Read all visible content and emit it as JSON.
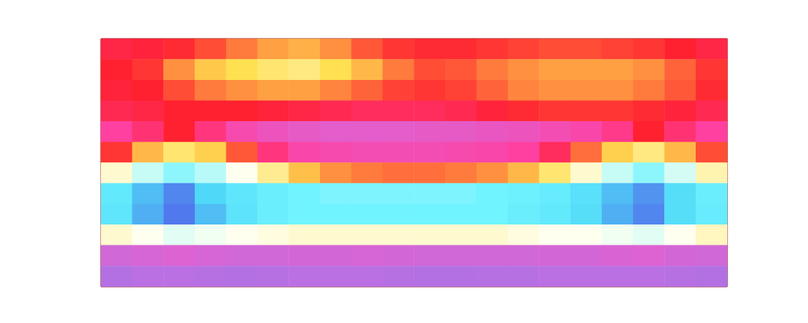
{
  "chart_data": {
    "type": "heatmap",
    "tick_labels": false,
    "color_range": [
      0,
      1
    ],
    "cells": [
      [
        0.38,
        0.39,
        0.41,
        0.44,
        0.48,
        0.52,
        0.54,
        0.5,
        0.45,
        0.42,
        0.41,
        0.41,
        0.42,
        0.43,
        0.44,
        0.44,
        0.43,
        0.42,
        0.4,
        0.38
      ],
      [
        0.4,
        0.42,
        0.5,
        0.57,
        0.6,
        0.62,
        0.63,
        0.6,
        0.55,
        0.48,
        0.44,
        0.45,
        0.48,
        0.5,
        0.52,
        0.52,
        0.52,
        0.5,
        0.46,
        0.42
      ],
      [
        0.39,
        0.4,
        0.44,
        0.48,
        0.5,
        0.52,
        0.52,
        0.49,
        0.46,
        0.43,
        0.42,
        0.43,
        0.46,
        0.49,
        0.5,
        0.5,
        0.5,
        0.48,
        0.45,
        0.41
      ],
      [
        0.37,
        0.38,
        0.4,
        0.4,
        0.4,
        0.39,
        0.38,
        0.37,
        0.36,
        0.36,
        0.36,
        0.37,
        0.39,
        0.41,
        0.42,
        0.42,
        0.42,
        0.41,
        0.39,
        0.37
      ],
      [
        0.3,
        0.34,
        0.4,
        0.33,
        0.27,
        0.24,
        0.22,
        0.21,
        0.21,
        0.21,
        0.22,
        0.22,
        0.23,
        0.24,
        0.26,
        0.28,
        0.32,
        0.4,
        0.34,
        0.3
      ],
      [
        0.42,
        0.55,
        0.62,
        0.58,
        0.45,
        0.33,
        0.28,
        0.27,
        0.26,
        0.26,
        0.26,
        0.27,
        0.28,
        0.3,
        0.36,
        0.47,
        0.58,
        0.63,
        0.55,
        0.44
      ],
      [
        0.68,
        0.74,
        0.78,
        0.75,
        0.7,
        0.64,
        0.56,
        0.5,
        0.48,
        0.47,
        0.47,
        0.48,
        0.5,
        0.55,
        0.62,
        0.68,
        0.74,
        0.78,
        0.73,
        0.66
      ],
      [
        0.84,
        0.92,
        0.96,
        0.9,
        0.85,
        0.82,
        0.8,
        0.79,
        0.79,
        0.79,
        0.79,
        0.79,
        0.8,
        0.81,
        0.83,
        0.87,
        0.92,
        0.95,
        0.88,
        0.82
      ],
      [
        0.85,
        0.93,
        0.97,
        0.92,
        0.86,
        0.82,
        0.8,
        0.8,
        0.8,
        0.8,
        0.8,
        0.8,
        0.8,
        0.82,
        0.84,
        0.88,
        0.93,
        0.96,
        0.88,
        0.83
      ],
      [
        0.68,
        0.7,
        0.72,
        0.71,
        0.7,
        0.69,
        0.68,
        0.68,
        0.68,
        0.68,
        0.68,
        0.68,
        0.68,
        0.69,
        0.7,
        0.7,
        0.71,
        0.72,
        0.7,
        0.67
      ],
      [
        0.15,
        0.17,
        0.19,
        0.17,
        0.15,
        0.15,
        0.16,
        0.16,
        0.17,
        0.16,
        0.15,
        0.15,
        0.15,
        0.15,
        0.16,
        0.16,
        0.18,
        0.19,
        0.16,
        0.15
      ],
      [
        0.06,
        0.08,
        0.08,
        0.07,
        0.06,
        0.07,
        0.08,
        0.08,
        0.08,
        0.07,
        0.06,
        0.06,
        0.07,
        0.07,
        0.08,
        0.08,
        0.08,
        0.08,
        0.07,
        0.06
      ]
    ]
  }
}
